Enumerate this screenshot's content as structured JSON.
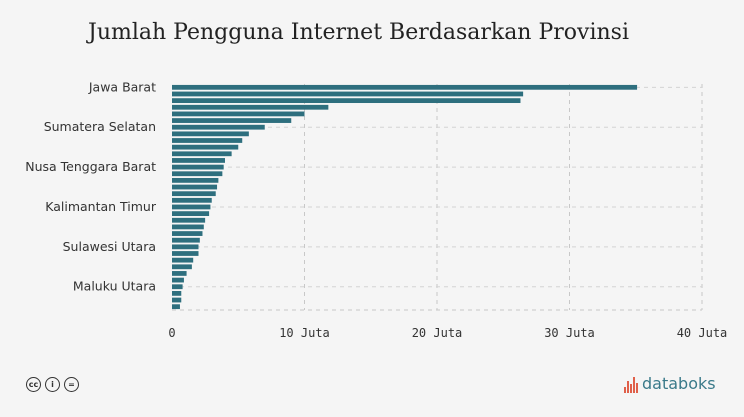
{
  "chart_data": {
    "type": "bar",
    "orientation": "horizontal",
    "title": "Jumlah Pengguna Internet Berdasarkan Provinsi",
    "xlim": [
      0,
      40
    ],
    "x_ticks": [
      "0",
      "10 Juta",
      "20 Juta",
      "30 Juta",
      "40 Juta"
    ],
    "x_tick_values": [
      0,
      10,
      20,
      30,
      40
    ],
    "y_tick_labels": [
      {
        "index": 0,
        "label": "Jawa Barat"
      },
      {
        "index": 6,
        "label": "Sumatera Selatan"
      },
      {
        "index": 12,
        "label": "Nusa Tenggara Barat"
      },
      {
        "index": 18,
        "label": "Kalimantan Timur"
      },
      {
        "index": 24,
        "label": "Sulawesi Utara"
      },
      {
        "index": 30,
        "label": "Maluku Utara"
      }
    ],
    "values": [
      35.1,
      26.5,
      26.3,
      11.8,
      10.0,
      9.0,
      7.0,
      5.8,
      5.3,
      5.0,
      4.5,
      4.0,
      3.9,
      3.8,
      3.5,
      3.4,
      3.3,
      3.0,
      2.9,
      2.8,
      2.5,
      2.4,
      2.3,
      2.1,
      2.0,
      2.0,
      1.6,
      1.5,
      1.1,
      0.9,
      0.8,
      0.7,
      0.7,
      0.6
    ],
    "bar_color": "#2e6f7e",
    "grid": true
  },
  "footer": {
    "license_icons": [
      "cc-icon",
      "by-icon",
      "nd-icon"
    ],
    "license_glyphs": [
      "cc",
      "i",
      "="
    ],
    "brand": "databoks"
  }
}
